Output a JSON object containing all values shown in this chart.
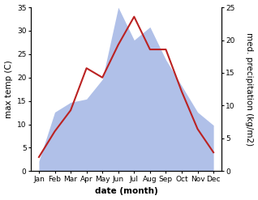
{
  "months": [
    "Jan",
    "Feb",
    "Mar",
    "Apr",
    "May",
    "Jun",
    "Jul",
    "Aug",
    "Sep",
    "Oct",
    "Nov",
    "Dec"
  ],
  "month_x": [
    1,
    2,
    3,
    4,
    5,
    6,
    7,
    8,
    9,
    10,
    11,
    12
  ],
  "temperature": [
    3,
    8.5,
    13,
    22,
    20,
    27,
    33,
    26,
    26,
    17,
    9,
    4
  ],
  "precipitation": [
    1.5,
    9,
    10.5,
    11,
    14,
    25,
    20,
    22,
    17,
    13,
    9,
    7
  ],
  "temp_ylim": [
    0,
    35
  ],
  "precip_ylim": [
    0,
    25
  ],
  "temp_yticks": [
    0,
    5,
    10,
    15,
    20,
    25,
    30,
    35
  ],
  "precip_yticks": [
    0,
    5,
    10,
    15,
    20,
    25
  ],
  "ylabel_left": "max temp (C)",
  "ylabel_right": "med. precipitation (kg/m2)",
  "xlabel": "date (month)",
  "line_color": "#bb2222",
  "fill_color": "#b0c0e8",
  "fill_alpha": 1.0,
  "bg_color": "#ffffff",
  "label_fontsize": 7.5,
  "tick_fontsize": 6.5
}
